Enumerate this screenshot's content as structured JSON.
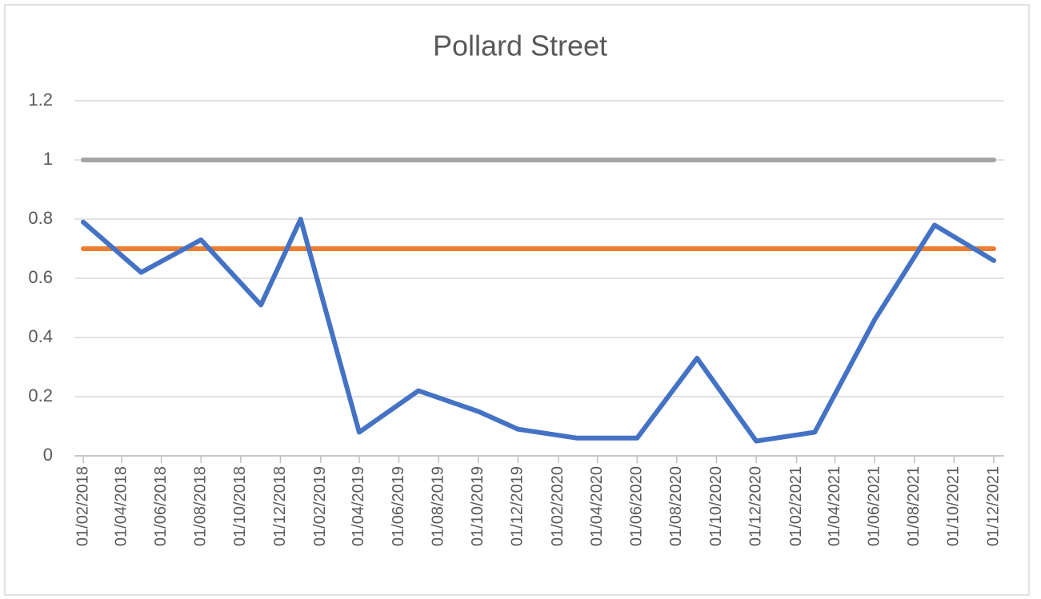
{
  "chart_data": {
    "type": "line",
    "title": "Pollard Street",
    "x": [
      "01/02/2018",
      "01/05/2018",
      "01/08/2018",
      "01/11/2018",
      "01/01/2019",
      "01/04/2019",
      "01/07/2019",
      "01/10/2019",
      "01/12/2019",
      "01/03/2020",
      "01/06/2020",
      "01/09/2020",
      "01/12/2020",
      "01/03/2021",
      "01/06/2021",
      "01/09/2021",
      "01/12/2021"
    ],
    "series": [
      {
        "color": "#4472c4",
        "values": [
          0.79,
          0.62,
          0.73,
          0.51,
          0.8,
          0.08,
          0.22,
          0.15,
          0.09,
          0.06,
          0.06,
          0.33,
          0.05,
          0.08,
          0.46,
          0.78,
          0.66
        ]
      },
      {
        "color": "#ed7d31",
        "values": [
          0.7,
          0.7,
          0.7,
          0.7,
          0.7,
          0.7,
          0.7,
          0.7,
          0.7,
          0.7,
          0.7,
          0.7,
          0.7,
          0.7,
          0.7,
          0.7,
          0.7
        ]
      },
      {
        "color": "#a5a5a5",
        "values": [
          1,
          1,
          1,
          1,
          1,
          1,
          1,
          1,
          1,
          1,
          1,
          1,
          1,
          1,
          1,
          1,
          1
        ]
      }
    ],
    "xlim": [
      "01/02/2018",
      "01/12/2021"
    ],
    "xticks": [
      "01/02/2018",
      "01/04/2018",
      "01/06/2018",
      "01/08/2018",
      "01/10/2018",
      "01/12/2018",
      "01/02/2019",
      "01/04/2019",
      "01/06/2019",
      "01/08/2019",
      "01/10/2019",
      "01/12/2019",
      "01/02/2020",
      "01/04/2020",
      "01/06/2020",
      "01/08/2020",
      "01/10/2020",
      "01/12/2020",
      "01/02/2021",
      "01/04/2021",
      "01/06/2021",
      "01/08/2021",
      "01/10/2021",
      "01/12/2021"
    ],
    "ylim": [
      0,
      1.2
    ],
    "yticks": [
      0,
      0.2,
      0.4,
      0.6,
      0.8,
      1,
      1.2
    ],
    "grid": true
  }
}
